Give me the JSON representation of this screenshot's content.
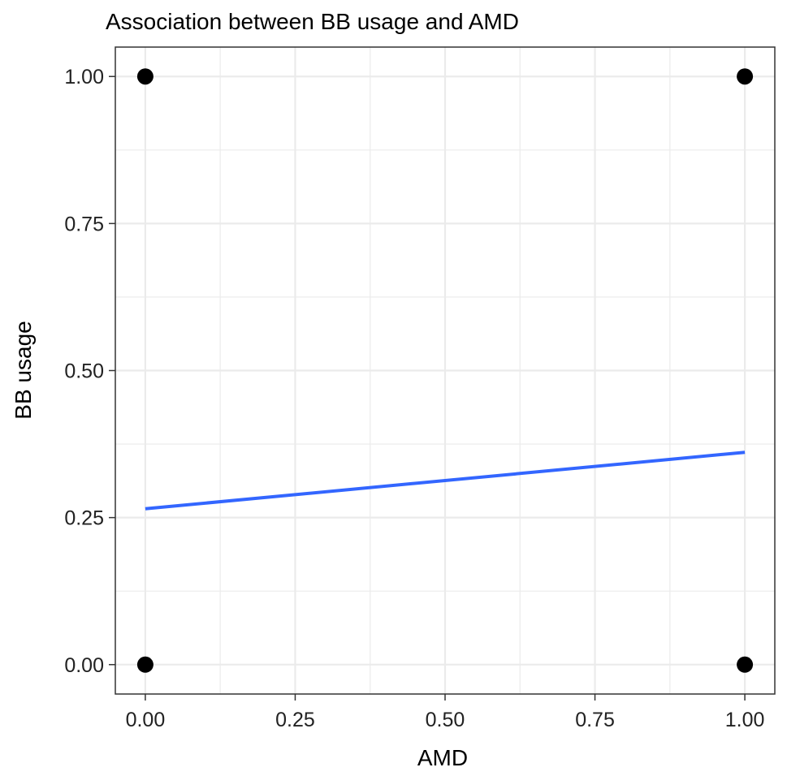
{
  "chart_data": {
    "type": "scatter",
    "title": "Association between BB usage and AMD",
    "xlabel": "AMD",
    "ylabel": "BB usage",
    "xlim": [
      -0.05,
      1.05
    ],
    "ylim": [
      -0.05,
      1.05
    ],
    "x_ticks": [
      "0.00",
      "0.25",
      "0.50",
      "0.75",
      "1.00"
    ],
    "y_ticks": [
      "0.00",
      "0.25",
      "0.50",
      "0.75",
      "1.00"
    ],
    "grid": true,
    "points": [
      {
        "x": 0,
        "y": 1
      },
      {
        "x": 1,
        "y": 1
      },
      {
        "x": 0,
        "y": 0
      },
      {
        "x": 1,
        "y": 0
      }
    ],
    "trend_line": {
      "x": [
        0,
        1
      ],
      "y": [
        0.265,
        0.361
      ]
    },
    "colors": {
      "points": "#000000",
      "trend_line": "#3366FF",
      "grid": "#EBEBEB",
      "panel_border": "#333333"
    }
  }
}
